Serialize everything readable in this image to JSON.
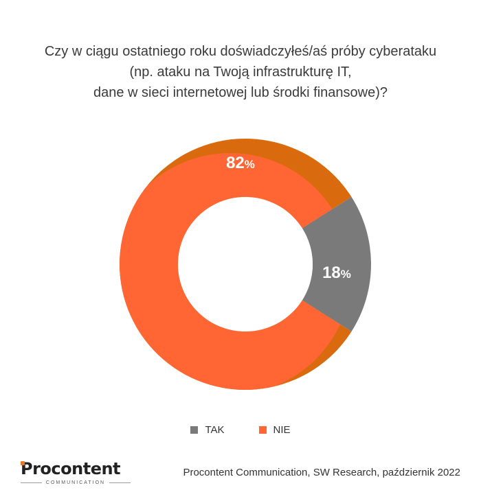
{
  "title_lines": [
    "Czy w ciągu ostatniego roku doświadczyłeś/aś próby cyberataku",
    "(np. ataku na Twoją infrastrukturę IT,",
    "dane w sieci internetowej lub środki finansowe)?"
  ],
  "chart_data": {
    "type": "pie",
    "donut": true,
    "title": "Czy w ciągu ostatniego roku doświadczyłeś/aś próby cyberataku (np. ataku na Twoją infrastrukturę IT, dane w sieci internetowej lub środki finansowe)?",
    "categories": [
      "TAK",
      "NIE"
    ],
    "values": [
      18,
      82
    ],
    "labels": [
      "18",
      "82"
    ],
    "unit": "%",
    "colors": [
      "#7a7a7a",
      "#ff6633"
    ],
    "outer_colors": [
      "#7a7a7a",
      "#d96a0e"
    ],
    "legend_position": "bottom"
  },
  "legend": [
    {
      "label": "TAK",
      "color": "#7a7a7a"
    },
    {
      "label": "NIE",
      "color": "#ff6633"
    }
  ],
  "logo": {
    "name": "Procontent",
    "sub": "COMMUNICATION"
  },
  "source": "Procontent Communication, SW Research, październik 2022"
}
